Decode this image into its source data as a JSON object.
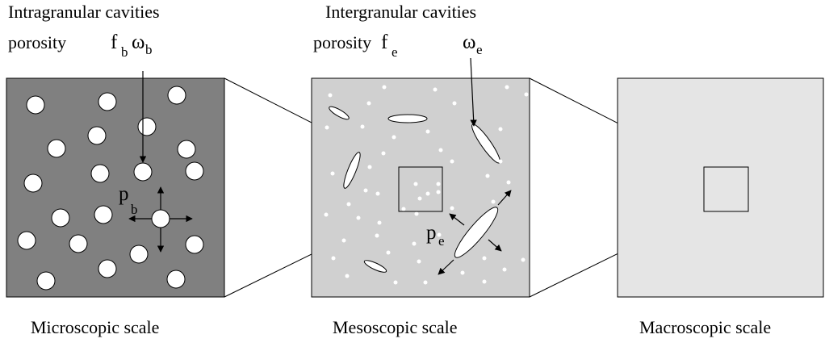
{
  "panels": [
    {
      "title": "Intragranular cavities",
      "porosity": "porosity",
      "f": "f",
      "f_sub": "b",
      "omega": "ω",
      "omega_sub": "b",
      "p": "p",
      "p_sub": "b",
      "scale": "Microscopic scale"
    },
    {
      "title": "Intergranular cavities",
      "porosity": "porosity",
      "f": "f",
      "f_sub": "e",
      "omega": "ω",
      "omega_sub": "e",
      "p": "p",
      "p_sub": "e",
      "scale": "Mesoscopic scale"
    },
    {
      "scale": "Macroscopic scale"
    }
  ]
}
